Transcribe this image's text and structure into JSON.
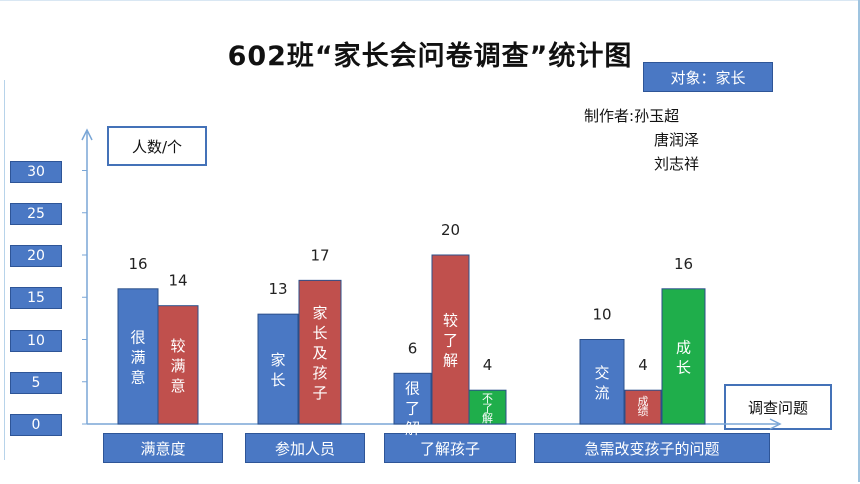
{
  "chart_data": {
    "type": "bar",
    "title": "602班“家长会问卷调查”统计图",
    "subject_label": "对象：家长",
    "authors_label": "制作者:",
    "authors": [
      "孙玉超",
      "唐润泽",
      "刘志祥"
    ],
    "ylabel": "人数/个",
    "xlabel": "调查问题",
    "ylim": [
      0,
      30
    ],
    "yticks": [
      "30",
      "25",
      "20",
      "15",
      "10",
      "5",
      "0"
    ],
    "categories": [
      "满意度",
      "参加人员",
      "了解孩子",
      "急需改变孩子的问题"
    ],
    "bars": [
      {
        "category": "满意度",
        "label": "很满意",
        "value": 16,
        "color": "#4a78c4"
      },
      {
        "category": "满意度",
        "label": "较满意",
        "value": 14,
        "color": "#c0504d"
      },
      {
        "category": "参加人员",
        "label": "家长",
        "value": 13,
        "color": "#4a78c4"
      },
      {
        "category": "参加人员",
        "label": "家长及孩子",
        "value": 17,
        "color": "#c0504d"
      },
      {
        "category": "了解孩子",
        "label": "很了解",
        "value": 6,
        "color": "#4a78c4"
      },
      {
        "category": "了解孩子",
        "label": "较了解",
        "value": 20,
        "color": "#c0504d"
      },
      {
        "category": "了解孩子",
        "label": "不了解",
        "value": 4,
        "color": "#1fae4b"
      },
      {
        "category": "急需改变孩子的问题",
        "label": "交流",
        "value": 10,
        "color": "#4a78c4"
      },
      {
        "category": "急需改变孩子的问题",
        "label": "成绩",
        "value": 4,
        "color": "#c0504d"
      },
      {
        "category": "急需改变孩子的问题",
        "label": "成长",
        "value": 16,
        "color": "#1fae4b"
      }
    ]
  }
}
